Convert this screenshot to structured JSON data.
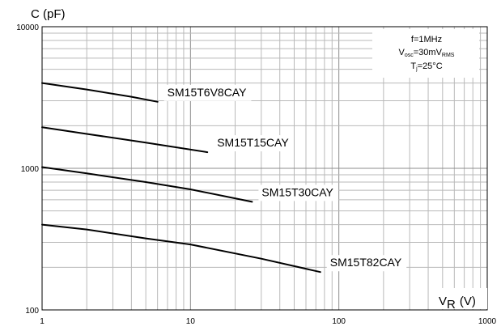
{
  "chart_data": {
    "type": "line",
    "x_scale": "log",
    "y_scale": "log",
    "xlim": [
      1,
      1000
    ],
    "ylim": [
      100,
      10000
    ],
    "x_ticks": [
      "1",
      "10",
      "100",
      "1000"
    ],
    "y_ticks": [
      "100",
      "1000",
      "10000"
    ],
    "ylabel": "C (pF)",
    "xlabel": {
      "main": "V",
      "subscript": "R",
      "unit": "(V)"
    },
    "conditions": {
      "line1": "f=1MHz",
      "line2": {
        "a": "V",
        "b": "osc",
        "c": "=30mV",
        "d": "RMS"
      },
      "line3": {
        "a": "T",
        "b": "j",
        "c": "=25°C"
      }
    },
    "grid": true,
    "series": [
      {
        "name": "SM15T6V8CAY",
        "x": [
          1,
          2,
          4,
          6
        ],
        "y": [
          4000,
          3600,
          3200,
          2950
        ]
      },
      {
        "name": "SM15T15CAY",
        "x": [
          1,
          2,
          5,
          13
        ],
        "y": [
          1950,
          1750,
          1520,
          1300
        ]
      },
      {
        "name": "SM15T30CAY",
        "x": [
          1,
          2,
          5,
          10,
          26
        ],
        "y": [
          1020,
          920,
          800,
          710,
          580
        ]
      },
      {
        "name": "SM15T82CAY",
        "x": [
          1,
          2,
          5,
          10,
          30,
          75
        ],
        "y": [
          400,
          370,
          320,
          290,
          230,
          185
        ]
      }
    ]
  }
}
